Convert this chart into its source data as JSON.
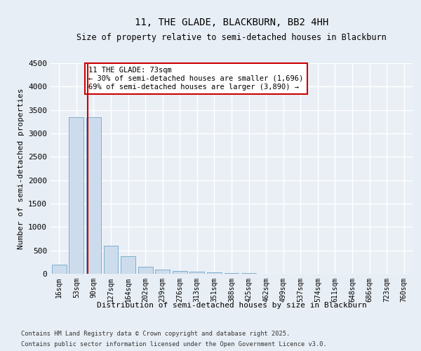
{
  "title": "11, THE GLADE, BLACKBURN, BB2 4HH",
  "subtitle": "Size of property relative to semi-detached houses in Blackburn",
  "xlabel": "Distribution of semi-detached houses by size in Blackburn",
  "ylabel": "Number of semi-detached properties",
  "annotation_line1": "11 THE GLADE: 73sqm",
  "annotation_line2": "← 30% of semi-detached houses are smaller (1,696)",
  "annotation_line3": "69% of semi-detached houses are larger (3,890) →",
  "categories": [
    "16sqm",
    "53sqm",
    "90sqm",
    "127sqm",
    "164sqm",
    "202sqm",
    "239sqm",
    "276sqm",
    "313sqm",
    "351sqm",
    "388sqm",
    "425sqm",
    "462sqm",
    "499sqm",
    "537sqm",
    "574sqm",
    "611sqm",
    "648sqm",
    "686sqm",
    "723sqm",
    "760sqm"
  ],
  "values": [
    200,
    3350,
    3350,
    600,
    370,
    150,
    90,
    55,
    40,
    25,
    15,
    10,
    7,
    5,
    3,
    2,
    2,
    1,
    1,
    1,
    1
  ],
  "bar_color": "#ccdcec",
  "bar_edge_color": "#7eaece",
  "vline_color": "#cc0000",
  "vline_x_index": 1.65,
  "annotation_box_color": "#cc0000",
  "ylim": [
    0,
    4500
  ],
  "yticks": [
    0,
    500,
    1000,
    1500,
    2000,
    2500,
    3000,
    3500,
    4000,
    4500
  ],
  "footer_line1": "Contains HM Land Registry data © Crown copyright and database right 2025.",
  "footer_line2": "Contains public sector information licensed under the Open Government Licence v3.0.",
  "bg_color": "#e8eef5",
  "plot_bg_color": "#eaeff6"
}
